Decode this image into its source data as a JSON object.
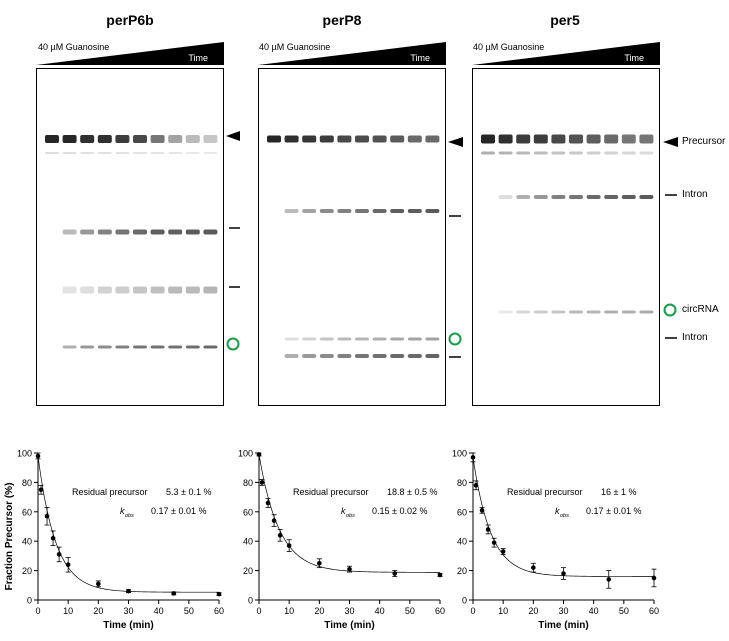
{
  "figure": {
    "panels": [
      {
        "title": "perP6b",
        "condition_label": "40 µM Guanosine",
        "time_label": "Time"
      },
      {
        "title": "perP8",
        "condition_label": "40 µM Guanosine",
        "time_label": "Time"
      },
      {
        "title": "per5",
        "condition_label": "40 µM Guanosine",
        "time_label": "Time"
      }
    ],
    "band_labels": {
      "precursor": "Precursor",
      "intron": "Intron",
      "circrna": "circRNA",
      "intron2": "Intron"
    },
    "colors": {
      "ink": "#000000",
      "circ_marker": "#1a9a4a",
      "band": "#1a1a1a"
    }
  },
  "chart_data": [
    {
      "type": "scatter",
      "ylabel": "Fraction Precursor (%)",
      "xlabel": "Time (min)",
      "xlim": [
        0,
        60
      ],
      "ylim": [
        0,
        100
      ],
      "xticks": [
        0,
        10,
        20,
        30,
        40,
        50,
        60
      ],
      "yticks": [
        0,
        20,
        40,
        60,
        80,
        100
      ],
      "x": [
        0,
        1,
        3,
        5,
        7,
        10,
        20,
        30,
        45,
        60
      ],
      "values": [
        98,
        75,
        57,
        42,
        31,
        24,
        11,
        6,
        4.5,
        4
      ],
      "errors": [
        2,
        3,
        6,
        5,
        5,
        5,
        2,
        1,
        1,
        1
      ],
      "annotation_label": "Residual precursor",
      "annotation_value": "5.3 ± 0.1 %",
      "kobs_symbol": "k",
      "kobs_sub": "obs",
      "kobs_value": "0.17 ± 0.01 %",
      "fit": {
        "plateau": 5.3,
        "k": 0.17,
        "y0": 98
      }
    },
    {
      "type": "scatter",
      "ylabel": "",
      "xlabel": "Time (min)",
      "xlim": [
        0,
        60
      ],
      "ylim": [
        0,
        100
      ],
      "xticks": [
        0,
        10,
        20,
        30,
        40,
        50,
        60
      ],
      "yticks": [
        0,
        20,
        40,
        60,
        80,
        100
      ],
      "x": [
        0,
        1,
        3,
        5,
        7,
        10,
        20,
        30,
        45,
        60
      ],
      "values": [
        99,
        80,
        66,
        54,
        44,
        37,
        25,
        21,
        18,
        17
      ],
      "errors": [
        1,
        2,
        3,
        4,
        4,
        4,
        3,
        2,
        2,
        1
      ],
      "annotation_label": "Residual precursor",
      "annotation_value": "18.8 ± 0.5 %",
      "kobs_symbol": "k",
      "kobs_sub": "obs",
      "kobs_value": "0.15 ± 0.02 %",
      "fit": {
        "plateau": 18.8,
        "k": 0.15,
        "y0": 99
      }
    },
    {
      "type": "scatter",
      "ylabel": "",
      "xlabel": "Time (min)",
      "xlim": [
        0,
        60
      ],
      "ylim": [
        0,
        100
      ],
      "xticks": [
        0,
        10,
        20,
        30,
        40,
        50,
        60
      ],
      "yticks": [
        0,
        20,
        40,
        60,
        80,
        100
      ],
      "x": [
        0,
        1,
        3,
        5,
        7,
        10,
        20,
        30,
        45,
        60
      ],
      "values": [
        97,
        78,
        61,
        48,
        39,
        33,
        22,
        18,
        14,
        15
      ],
      "errors": [
        3,
        3,
        2,
        3,
        3,
        2,
        3,
        4,
        6,
        6
      ],
      "annotation_label": "Residual precursor",
      "annotation_value": "16 ± 1 %",
      "kobs_symbol": "k",
      "kobs_sub": "obs",
      "kobs_value": "0.17 ± 0.01 %",
      "fit": {
        "plateau": 16,
        "k": 0.17,
        "y0": 97
      }
    }
  ]
}
